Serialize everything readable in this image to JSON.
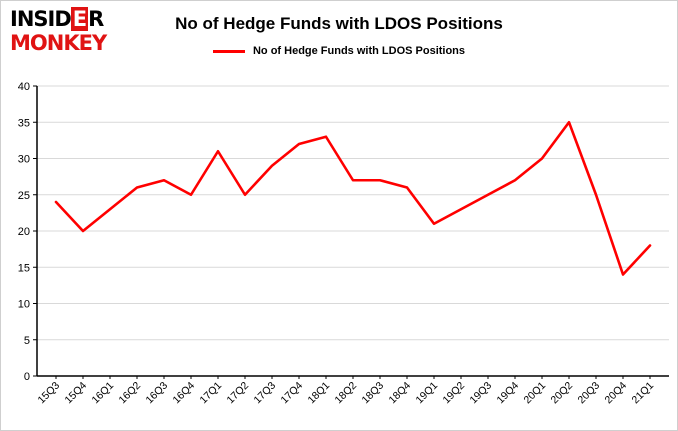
{
  "logo": {
    "line1_pre": "INSID",
    "line1_highlight": "E",
    "line1_post": "R",
    "line2": "MONKEY",
    "black": "#000000",
    "red": "#e01313"
  },
  "header": {
    "title": "No of Hedge Funds with LDOS Positions"
  },
  "legend": {
    "label": "No of Hedge Funds with LDOS Positions",
    "line_color": "#ff0000"
  },
  "chart_data": {
    "type": "line",
    "title": "No of Hedge Funds with LDOS Positions",
    "categories": [
      "15Q3",
      "15Q4",
      "16Q1",
      "16Q2",
      "16Q3",
      "16Q4",
      "17Q1",
      "17Q2",
      "17Q3",
      "17Q4",
      "18Q1",
      "18Q2",
      "18Q3",
      "18Q4",
      "19Q1",
      "19Q2",
      "19Q3",
      "19Q4",
      "20Q1",
      "20Q2",
      "20Q3",
      "20Q4",
      "21Q1"
    ],
    "series": [
      {
        "name": "No of Hedge Funds with LDOS Positions",
        "values": [
          24,
          20,
          23,
          26,
          27,
          25,
          31,
          25,
          29,
          32,
          33,
          27,
          27,
          26,
          21,
          23,
          25,
          27,
          30,
          35,
          25,
          14,
          18
        ]
      }
    ],
    "xlabel": "",
    "ylabel": "",
    "ylim": [
      0,
      40
    ],
    "ytick_step": 5,
    "grid": true,
    "legend_position": "top",
    "line_color": "#ff0000",
    "grid_color": "#d9d9d9",
    "axis_color": "#000000"
  }
}
